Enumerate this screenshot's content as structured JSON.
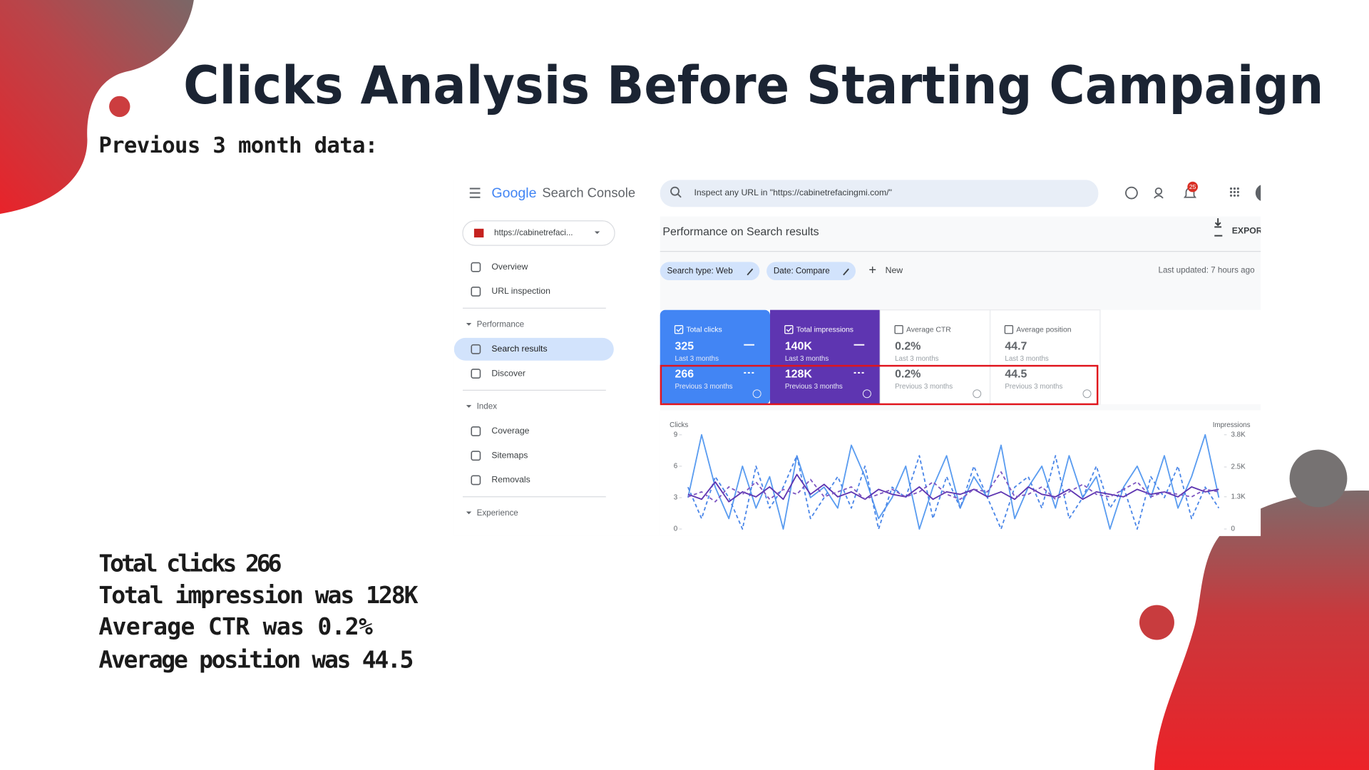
{
  "slide": {
    "title": "Clicks Analysis Before Starting Campaign",
    "subtitle": "Previous 3 month data:",
    "summary": [
      "Total clicks 266",
      "Total impression was 128K",
      "Average CTR was 0.2%",
      "Average position was 44.5"
    ]
  },
  "console": {
    "brand": "Google",
    "product": "Search Console",
    "search_placeholder": "Inspect any URL in \"https://cabinetrefacingmi.com/\"",
    "notification_count": "25",
    "property": "https://cabinetrefaci...",
    "nav": [
      {
        "label": "Overview"
      },
      {
        "label": "URL inspection"
      },
      {
        "section": "Performance"
      },
      {
        "label": "Search results",
        "active": true
      },
      {
        "label": "Discover"
      },
      {
        "section": "Index"
      },
      {
        "label": "Coverage"
      },
      {
        "label": "Sitemaps"
      },
      {
        "label": "Removals"
      },
      {
        "section": "Experience"
      }
    ],
    "page_title": "Performance on Search results",
    "export": "EXPOR",
    "filters": [
      "Search type: Web",
      "Date: Compare"
    ],
    "new": "New",
    "last_updated": "Last updated: 7 hours ago",
    "metrics": [
      {
        "label": "Total clicks",
        "current": "325",
        "current_period": "Last 3 months",
        "previous": "266",
        "previous_period": "Previous 3 months",
        "selected": true,
        "color": "#4285f4"
      },
      {
        "label": "Total impressions",
        "current": "140K",
        "current_period": "Last 3 months",
        "previous": "128K",
        "previous_period": "Previous 3 months",
        "selected": true,
        "color": "#5e35b1"
      },
      {
        "label": "Average CTR",
        "current": "0.2%",
        "current_period": "Last 3 months",
        "previous": "0.2%",
        "previous_period": "Previous 3 months",
        "selected": false
      },
      {
        "label": "Average position",
        "current": "44.7",
        "current_period": "Last 3 months",
        "previous": "44.5",
        "previous_period": "Previous 3 months",
        "selected": false
      }
    ]
  },
  "chart_data": {
    "type": "line",
    "ylabel": "Clicks",
    "y2label": "Impressions",
    "categories": [
      null,
      null,
      null,
      null,
      null,
      null,
      null,
      null,
      null,
      null,
      null,
      null,
      null,
      null,
      null,
      null,
      null,
      null,
      null,
      null,
      null,
      null,
      null,
      null,
      null,
      null,
      null,
      null,
      null,
      null,
      null,
      null,
      null,
      null,
      null,
      null,
      null,
      null,
      null,
      null
    ],
    "ylim": [
      0,
      9
    ],
    "yticks": [
      0,
      3,
      6,
      9
    ],
    "y2lim": [
      0,
      3800
    ],
    "y2ticks": [
      0,
      {
        "value": 1300,
        "label": "1.3K"
      },
      {
        "value": 2500,
        "label": "2.5K"
      },
      {
        "value": 3800,
        "label": "3.8K"
      }
    ],
    "series": [
      {
        "color": "#5a9cf0",
        "dashed": false,
        "values": [
          3,
          9,
          4,
          1,
          6,
          2,
          5,
          0,
          7,
          3,
          4,
          2,
          8,
          5,
          1,
          3,
          6,
          0,
          4,
          7,
          2,
          5,
          3,
          8,
          1,
          4,
          6,
          2,
          7,
          3,
          5,
          0,
          4,
          6,
          3,
          7,
          2,
          5,
          9,
          3
        ]
      },
      {
        "color": "#4a86e8",
        "dashed": true,
        "values": [
          4,
          1,
          5,
          3,
          0,
          6,
          2,
          4,
          7,
          1,
          3,
          5,
          2,
          6,
          0,
          4,
          3,
          7,
          1,
          5,
          2,
          6,
          3,
          0,
          4,
          5,
          2,
          7,
          1,
          3,
          6,
          2,
          4,
          0,
          5,
          3,
          6,
          1,
          4,
          2
        ]
      },
      {
        "color": "#5e35b1",
        "dashed": false,
        "axis": "y2",
        "values": [
          1400,
          1200,
          1900,
          1100,
          1500,
          1300,
          1700,
          1200,
          2200,
          1400,
          1800,
          1300,
          1500,
          1200,
          1600,
          1400,
          1300,
          1700,
          1200,
          1500,
          1400,
          1600,
          1300,
          1500,
          1200,
          1700,
          1400,
          1300,
          1600,
          1200,
          1500,
          1400,
          1300,
          1600,
          1400,
          1500,
          1300,
          1700,
          1500,
          1600
        ]
      },
      {
        "color": "#7e57c2",
        "dashed": true,
        "axis": "y2",
        "values": [
          1300,
          1500,
          1100,
          1700,
          1400,
          1900,
          1200,
          1600,
          1400,
          2000,
          1300,
          1500,
          1700,
          1200,
          1400,
          1600,
          1300,
          1500,
          1900,
          1400,
          1200,
          1600,
          1500,
          2300,
          1300,
          1400,
          1700,
          1200,
          1500,
          1800,
          1400,
          1300,
          1600,
          1900,
          1300,
          1500,
          1400,
          1300,
          1600,
          1500
        ]
      }
    ]
  }
}
